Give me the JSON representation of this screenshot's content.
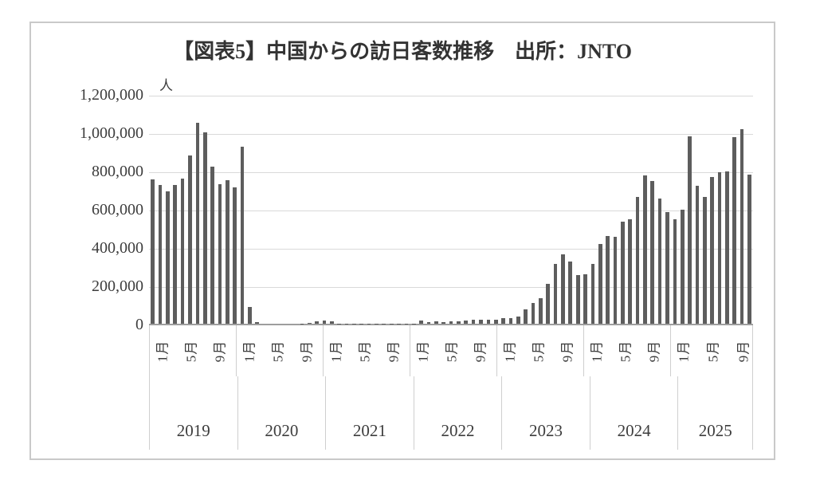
{
  "chart_data": {
    "type": "bar",
    "title": "【図表5】中国からの訪日客数推移　出所：JNTO",
    "unit_label": "人",
    "bar_color": "#5d5d5d",
    "grid": true,
    "legend": "none",
    "ylim": [
      0,
      1200000
    ],
    "ytick_interval": 200000,
    "ytick_labels": [
      "1,200,000",
      "1,000,000",
      "800,000",
      "600,000",
      "400,000",
      "200,000",
      "0"
    ],
    "month_ticks": [
      {
        "month": 1,
        "label": "1月"
      },
      {
        "month": 5,
        "label": "5月"
      },
      {
        "month": 9,
        "label": "9月"
      }
    ],
    "series": [
      {
        "year": "2019",
        "values": [
          754400,
          723600,
          691300,
          726100,
          756400,
          880700,
          1050400,
          1000600,
          819100,
          730600,
          751000,
          710700
        ]
      },
      {
        "year": "2020",
        "values": [
          924800,
          87200,
          10400,
          200,
          100,
          100,
          300,
          300,
          500,
          2600,
          13500,
          15900
        ]
      },
      {
        "year": "2021",
        "values": [
          11100,
          800,
          1300,
          1300,
          1000,
          1300,
          1600,
          1500,
          1600,
          1900,
          2000,
          2100
        ]
      },
      {
        "year": "2022",
        "values": [
          17700,
          9000,
          13100,
          9900,
          10600,
          11000,
          15700,
          22500,
          20800,
          21500,
          21000,
          30400
        ]
      },
      {
        "year": "2023",
        "values": [
          31200,
          36200,
          75700,
          108300,
          134400,
          208500,
          313300,
          364100,
          325600,
          256300,
          258900,
          312300
        ]
      },
      {
        "year": "2024",
        "values": [
          415900,
          459400,
          452400,
          533600,
          545000,
          660900,
          776500,
          745800,
          652300,
          582800,
          546300,
          596100
        ]
      },
      {
        "year": "2025",
        "values": [
          980300,
          722700,
          661700,
          765100,
          789900,
          797600,
          974500,
          1017800,
          779700
        ]
      }
    ]
  }
}
